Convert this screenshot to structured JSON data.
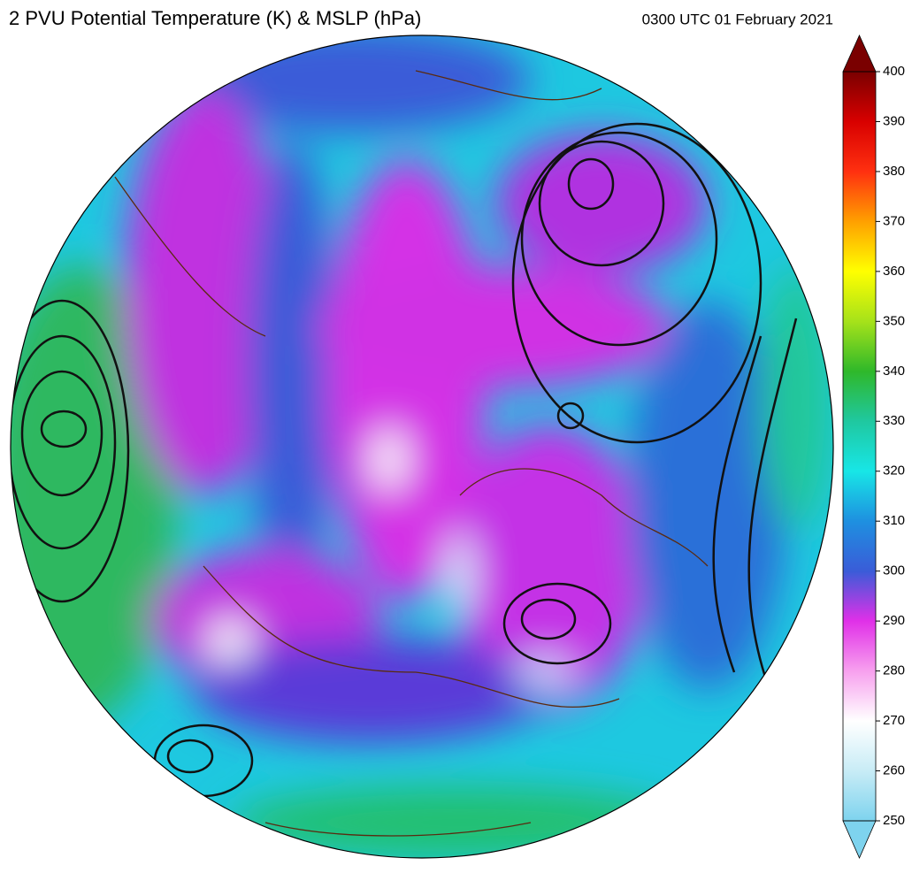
{
  "title": "2 PVU Potential Temperature (K) & MSLP (hPa)",
  "time": "0300 UTC 01 February 2021",
  "colorbar": {
    "lim": [
      250,
      400
    ],
    "ticks": [
      250,
      260,
      270,
      280,
      290,
      300,
      310,
      320,
      330,
      340,
      350,
      360,
      370,
      380,
      390,
      400
    ],
    "colors": [
      "#7ed3ee",
      "#c8ecf6",
      "#ffffff",
      "#f7a0ee",
      "#e030e8",
      "#3a5cd8",
      "#1e90e0",
      "#18e6e6",
      "#1fc8a0",
      "#2fb82a",
      "#a6e21a",
      "#ffff00",
      "#ffa000",
      "#ff3010",
      "#d80000",
      "#7a0000"
    ]
  }
}
